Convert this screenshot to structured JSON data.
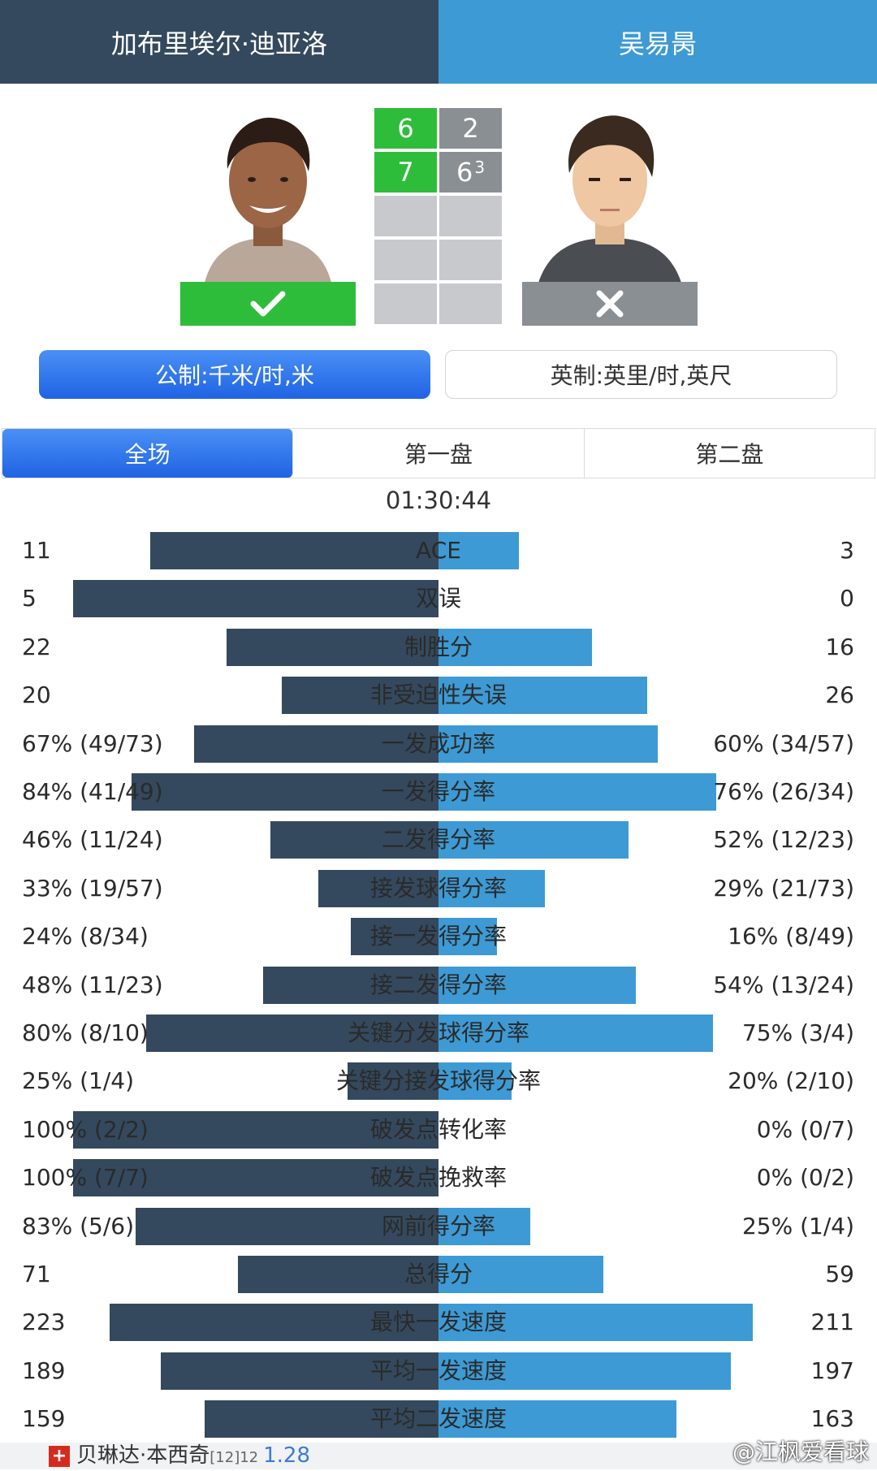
{
  "players": {
    "left": "加布里埃尔·迪亚洛",
    "right": "吴易昺"
  },
  "scores": [
    {
      "left": "6",
      "right": "2",
      "right_tiebreak": ""
    },
    {
      "left": "7",
      "right": "6",
      "right_tiebreak": "3"
    }
  ],
  "result": {
    "winner_icon": "check-icon",
    "loser_icon": "cross-icon"
  },
  "units": {
    "metric": "公制:千米/时,米",
    "imperial": "英制:英里/时,英尺"
  },
  "tabs": [
    "全场",
    "第一盘",
    "第二盘"
  ],
  "duration": "01:30:44",
  "stats": [
    {
      "name": "ACE",
      "left": "11",
      "right": "3",
      "lw": 0.79,
      "rw": 0.22
    },
    {
      "name": "双误",
      "left": "5",
      "right": "0",
      "lw": 1.0,
      "rw": 0.0
    },
    {
      "name": "制胜分",
      "left": "22",
      "right": "16",
      "lw": 0.58,
      "rw": 0.42
    },
    {
      "name": "非受迫性失误",
      "left": "20",
      "right": "26",
      "lw": 0.43,
      "rw": 0.57
    },
    {
      "name": "一发成功率",
      "left": "67% (49/73)",
      "right": "60% (34/57)",
      "lw": 0.67,
      "rw": 0.6
    },
    {
      "name": "一发得分率",
      "left": "84% (41/49)",
      "right": "76% (26/34)",
      "lw": 0.84,
      "rw": 0.76
    },
    {
      "name": "二发得分率",
      "left": "46% (11/24)",
      "right": "52% (12/23)",
      "lw": 0.46,
      "rw": 0.52
    },
    {
      "name": "接发球得分率",
      "left": "33% (19/57)",
      "right": "29% (21/73)",
      "lw": 0.33,
      "rw": 0.29
    },
    {
      "name": "接一发得分率",
      "left": "24% (8/34)",
      "right": "16% (8/49)",
      "lw": 0.24,
      "rw": 0.16
    },
    {
      "name": "接二发得分率",
      "left": "48% (11/23)",
      "right": "54% (13/24)",
      "lw": 0.48,
      "rw": 0.54
    },
    {
      "name": "关键分发球得分率",
      "left": "80% (8/10)",
      "right": "75% (3/4)",
      "lw": 0.8,
      "rw": 0.75
    },
    {
      "name": "关键分接发球得分率",
      "left": "25% (1/4)",
      "right": "20% (2/10)",
      "lw": 0.25,
      "rw": 0.2
    },
    {
      "name": "破发点转化率",
      "left": "100% (2/2)",
      "right": "0% (0/7)",
      "lw": 1.0,
      "rw": 0.0
    },
    {
      "name": "破发点挽救率",
      "left": "100% (7/7)",
      "right": "0% (0/2)",
      "lw": 1.0,
      "rw": 0.0
    },
    {
      "name": "网前得分率",
      "left": "83% (5/6)",
      "right": "25% (1/4)",
      "lw": 0.83,
      "rw": 0.25
    },
    {
      "name": "总得分",
      "left": "71",
      "right": "59",
      "lw": 0.55,
      "rw": 0.45
    },
    {
      "name": "最快一发速度",
      "left": "223",
      "right": "211",
      "lw": 0.9,
      "rw": 0.86
    },
    {
      "name": "平均一发速度",
      "left": "189",
      "right": "197",
      "lw": 0.76,
      "rw": 0.8
    },
    {
      "name": "平均二发速度",
      "left": "159",
      "right": "163",
      "lw": 0.64,
      "rw": 0.65
    }
  ],
  "bottom": {
    "player": "贝琳达·本西奇",
    "seed": "[12]12",
    "odds": "1.28"
  },
  "watermark": "@江枫爱看球",
  "colors": {
    "left_player": "#34495e",
    "right_player": "#3d9ad4",
    "win": "#2ebd3a",
    "lose": "#8a8f94",
    "active_tab": "#1f63e3"
  }
}
